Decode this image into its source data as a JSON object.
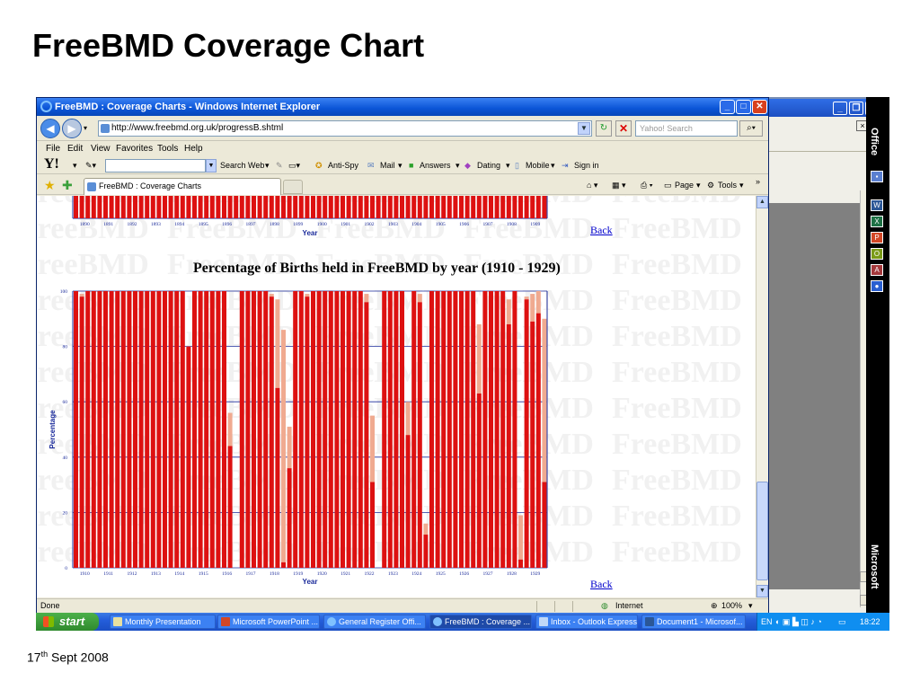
{
  "slide": {
    "title": "FreeBMD Coverage Chart",
    "date_day": "17",
    "date_suffix": "th",
    "date_rest": " Sept 2008"
  },
  "ie": {
    "window_title": "FreeBMD : Coverage Charts - Windows Internet Explorer",
    "url": "http://www.freebmd.org.uk/progressB.shtml",
    "search_placeholder": "Yahoo! Search",
    "menu": [
      "File",
      "Edit",
      "View",
      "Favorites",
      "Tools",
      "Help"
    ],
    "yahoo_toolbar": {
      "search_web": "Search Web",
      "anti_spy": "Anti-Spy",
      "mail": "Mail",
      "answers": "Answers",
      "dating": "Dating",
      "mobile": "Mobile",
      "sign_in": "Sign in"
    },
    "tab_label": "FreeBMD : Coverage Charts",
    "commands": {
      "page": "Page",
      "tools": "Tools"
    },
    "status": {
      "left": "Done",
      "zone": "Internet",
      "zoom": "100%"
    }
  },
  "page": {
    "back_label": "Back",
    "chart_title": "Percentage of Births held in FreeBMD by year (1910 - 1929)",
    "watermark_text": "FreeBMD"
  },
  "chart_data": [
    {
      "type": "bar",
      "xlabel": "Year",
      "categories": [
        "1890",
        "1891",
        "1892",
        "1893",
        "1894",
        "1895",
        "1896",
        "1897",
        "1898",
        "1899",
        "1900",
        "1901",
        "1902",
        "1903",
        "1904",
        "1905",
        "1906",
        "1907",
        "1908",
        "1909"
      ]
    },
    {
      "type": "bar",
      "title": "Percentage of Births held in FreeBMD by year (1910 - 1929)",
      "xlabel": "Year",
      "ylabel": "Percentage",
      "ylim": [
        0,
        100
      ],
      "yticks": [
        0,
        20,
        40,
        60,
        80,
        100
      ],
      "grid": true,
      "categories": [
        "1910",
        "1911",
        "1912",
        "1913",
        "1914",
        "1915",
        "1916",
        "1917",
        "1918",
        "1919",
        "1920",
        "1921",
        "1922",
        "1923",
        "1924",
        "1925",
        "1926",
        "1927",
        "1928",
        "1929"
      ],
      "quarters": [
        [
          [
            100,
            100
          ],
          [
            98,
            99
          ],
          [
            100,
            100
          ],
          [
            100,
            100
          ]
        ],
        [
          [
            100,
            100
          ],
          [
            100,
            100
          ],
          [
            100,
            100
          ],
          [
            100,
            100
          ]
        ],
        [
          [
            100,
            100
          ],
          [
            100,
            100
          ],
          [
            100,
            100
          ],
          [
            100,
            100
          ]
        ],
        [
          [
            100,
            100
          ],
          [
            100,
            100
          ],
          [
            100,
            100
          ],
          [
            100,
            100
          ]
        ],
        [
          [
            100,
            100
          ],
          [
            100,
            100
          ],
          [
            100,
            100
          ],
          [
            80,
            80
          ]
        ],
        [
          [
            100,
            100
          ],
          [
            100,
            100
          ],
          [
            100,
            100
          ],
          [
            100,
            100
          ]
        ],
        [
          [
            100,
            100
          ],
          [
            100,
            100
          ],
          [
            44,
            56
          ],
          [
            0,
            0
          ]
        ],
        [
          [
            100,
            100
          ],
          [
            100,
            100
          ],
          [
            100,
            100
          ],
          [
            100,
            100
          ]
        ],
        [
          [
            100,
            100
          ],
          [
            98,
            99
          ],
          [
            65,
            97
          ],
          [
            2,
            86
          ]
        ],
        [
          [
            36,
            51
          ],
          [
            100,
            100
          ],
          [
            100,
            100
          ],
          [
            98,
            99
          ]
        ],
        [
          [
            100,
            100
          ],
          [
            100,
            100
          ],
          [
            100,
            100
          ],
          [
            100,
            100
          ]
        ],
        [
          [
            100,
            100
          ],
          [
            100,
            100
          ],
          [
            100,
            100
          ],
          [
            100,
            100
          ]
        ],
        [
          [
            100,
            100
          ],
          [
            96,
            99
          ],
          [
            31,
            55
          ],
          [
            0,
            0
          ]
        ],
        [
          [
            100,
            100
          ],
          [
            100,
            100
          ],
          [
            100,
            100
          ],
          [
            100,
            100
          ]
        ],
        [
          [
            48,
            60
          ],
          [
            100,
            100
          ],
          [
            96,
            99
          ],
          [
            12,
            16
          ]
        ],
        [
          [
            100,
            100
          ],
          [
            100,
            100
          ],
          [
            100,
            100
          ],
          [
            100,
            100
          ]
        ],
        [
          [
            100,
            100
          ],
          [
            100,
            100
          ],
          [
            100,
            100
          ],
          [
            100,
            100
          ]
        ],
        [
          [
            63,
            88
          ],
          [
            100,
            100
          ],
          [
            100,
            100
          ],
          [
            100,
            100
          ]
        ],
        [
          [
            100,
            100
          ],
          [
            88,
            97
          ],
          [
            100,
            100
          ],
          [
            3,
            19
          ]
        ],
        [
          [
            97,
            98
          ],
          [
            89,
            99
          ],
          [
            92,
            100
          ],
          [
            31,
            90
          ]
        ]
      ],
      "series": [
        {
          "name": "",
          "color": "#dd1111"
        },
        {
          "name": "",
          "color": "#f0aa90"
        }
      ]
    }
  ],
  "taskbar": {
    "start": "start",
    "tasks": [
      "Monthly Presentation",
      "Microsoft PowerPoint ...",
      "General Register Offi...",
      "FreeBMD : Coverage ...",
      "Inbox - Outlook Express",
      "Document1 - Microsof..."
    ],
    "tray_lang": "EN",
    "clock": "18:22"
  },
  "office_bar": {
    "label": "Office",
    "brand": "Microsoft"
  }
}
